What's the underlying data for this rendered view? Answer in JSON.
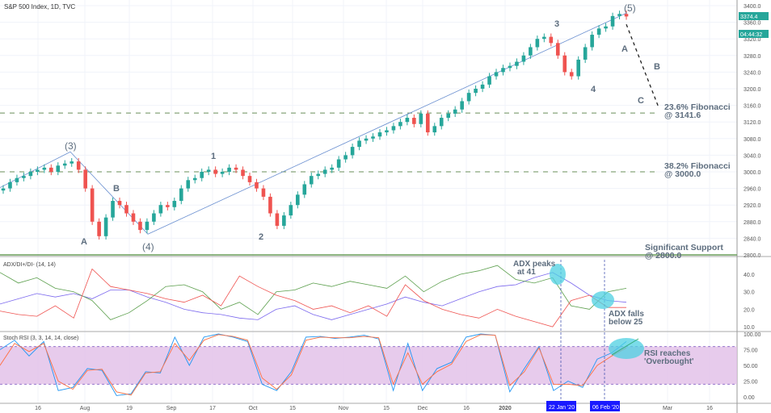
{
  "header": {
    "title": "S&P 500 Index, 1D, TVC"
  },
  "price_badge": {
    "last": "3374.4",
    "countdown": "04:44:32",
    "color": "#26a69a"
  },
  "colors": {
    "up": "#26a69a",
    "down": "#ef5350",
    "adx": "#7b68ee",
    "di_plus": "#5a9e4b",
    "di_minus": "#ef5350",
    "stoch_k": "#2196f3",
    "stoch_d": "#ff7043",
    "band": "#e1bee7",
    "annotation": "#5d6d7e",
    "highlight": "#4dd0e1"
  },
  "chart_data": [
    {
      "type": "candlestick",
      "name": "S&P 500 Index",
      "ylim": [
        2790,
        3420
      ],
      "y_ticks": [
        "3400.0",
        "3360.0",
        "3320.0",
        "3280.0",
        "3240.0",
        "3200.0",
        "3160.0",
        "3120.0",
        "3080.0",
        "3040.0",
        "3000.0",
        "2960.0",
        "2920.0",
        "2880.0",
        "2840.0",
        "2800.0"
      ],
      "closes": [
        2960,
        2975,
        2985,
        2990,
        3000,
        3005,
        3010,
        3000,
        3015,
        3020,
        3025,
        3005,
        2960,
        2880,
        2845,
        2890,
        2930,
        2920,
        2900,
        2880,
        2860,
        2880,
        2900,
        2920,
        2915,
        2930,
        2960,
        2980,
        2985,
        3000,
        3005,
        2995,
        3000,
        3010,
        3005,
        2990,
        2975,
        2960,
        2940,
        2900,
        2870,
        2895,
        2920,
        2945,
        2970,
        2990,
        2995,
        3005,
        3010,
        3030,
        3040,
        3060,
        3075,
        3080,
        3085,
        3095,
        3100,
        3110,
        3120,
        3130,
        3115,
        3140,
        3095,
        3110,
        3130,
        3140,
        3150,
        3170,
        3190,
        3200,
        3210,
        3230,
        3240,
        3250,
        3255,
        3265,
        3280,
        3300,
        3320,
        3325,
        3310,
        3280,
        3240,
        3230,
        3270,
        3300,
        3330,
        3345,
        3350,
        3375,
        3380,
        3374
      ],
      "levels": [
        {
          "label": "23.6% Fibonacci",
          "value_label": "@ 3141.6",
          "value": 3141.6
        },
        {
          "label": "38.2% Fibonacci",
          "value_label": "@ 3000.0",
          "value": 3000.0
        },
        {
          "label": "Significant Support",
          "value_label": "@ 2800.0",
          "value": 2800.0
        }
      ],
      "wave_labels": [
        "(3)",
        "A",
        "B",
        "(4)",
        "1",
        "2",
        "3",
        "4",
        "(5)",
        "A",
        "B",
        "C"
      ]
    },
    {
      "type": "line",
      "name": "ADX/DI+/DI- (14, 14)",
      "ylim": [
        8,
        46
      ],
      "y_ticks": [
        "40.0",
        "30.0",
        "20.0",
        "10.0"
      ],
      "series": [
        {
          "name": "ADX",
          "values": [
            23,
            26,
            29,
            27,
            29,
            26,
            31,
            31,
            27,
            24,
            20,
            18,
            17,
            15,
            14,
            20,
            22,
            17,
            14,
            17,
            20,
            23,
            27,
            24,
            22,
            26,
            30,
            33,
            34,
            38,
            41,
            35,
            28,
            25,
            24
          ]
        },
        {
          "name": "DI+",
          "values": [
            41,
            35,
            38,
            32,
            30,
            25,
            14,
            18,
            25,
            33,
            34,
            30,
            20,
            24,
            17,
            30,
            31,
            35,
            33,
            36,
            34,
            32,
            39,
            30,
            36,
            40,
            42,
            45,
            37,
            35,
            38,
            22,
            20,
            30,
            32
          ]
        },
        {
          "name": "DI-",
          "values": [
            19,
            17,
            16,
            22,
            15,
            43,
            33,
            31,
            29,
            26,
            24,
            28,
            22,
            39,
            33,
            28,
            25,
            20,
            22,
            18,
            22,
            16,
            34,
            25,
            20,
            17,
            15,
            20,
            16,
            13,
            10,
            25,
            28,
            21,
            21
          ]
        }
      ]
    },
    {
      "type": "line",
      "name": "Stoch RSI (3, 3, 14, 14, close)",
      "ylim": [
        0,
        100
      ],
      "y_ticks": [
        "100.00",
        "75.00",
        "50.00",
        "25.00",
        "0.00"
      ],
      "bands": [
        20,
        80
      ],
      "series": [
        {
          "name": "K",
          "values": [
            75,
            90,
            65,
            88,
            10,
            15,
            45,
            42,
            2,
            5,
            40,
            38,
            95,
            50,
            95,
            100,
            95,
            88,
            20,
            10,
            40,
            95,
            96,
            93,
            95,
            98,
            92,
            10,
            85,
            10,
            45,
            55,
            95,
            100,
            98,
            8,
            45,
            80,
            10,
            25,
            15,
            60,
            70,
            88
          ]
        },
        {
          "name": "D",
          "values": [
            50,
            85,
            72,
            85,
            25,
            12,
            42,
            44,
            8,
            3,
            38,
            40,
            85,
            58,
            90,
            99,
            96,
            90,
            30,
            12,
            35,
            90,
            95,
            94,
            94,
            96,
            94,
            20,
            70,
            20,
            40,
            52,
            88,
            99,
            98,
            18,
            40,
            78,
            20,
            20,
            18,
            50,
            65,
            78
          ]
        }
      ]
    }
  ],
  "annotations": {
    "adx_peak": [
      "ADX peaks",
      "at 41"
    ],
    "adx_fall": [
      "ADX falls",
      "below 25"
    ],
    "rsi": [
      "RSI reaches",
      "'Overbought'"
    ]
  },
  "x_axis": {
    "ticks": [
      "16",
      "Aug",
      "19",
      "Sep",
      "17",
      "Oct",
      "15",
      "Nov",
      "15",
      "Dec",
      "16",
      "2020",
      "Mar",
      "16"
    ],
    "markers": [
      "22 Jan '20",
      "06 Feb '20"
    ]
  }
}
